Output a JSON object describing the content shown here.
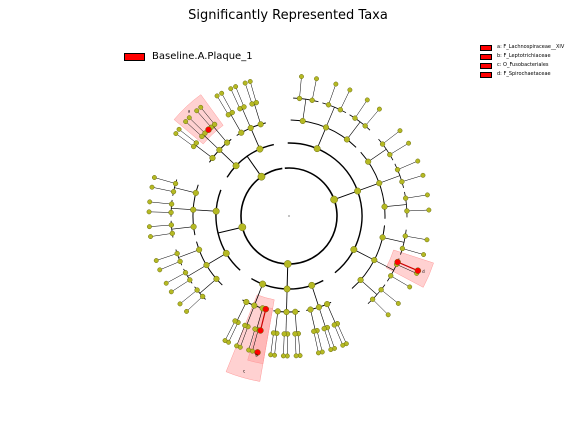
{
  "title": "Significantly Represented Taxa",
  "group_legend": {
    "label": "Baseline.A.Plaque_1",
    "color": "#ff0000"
  },
  "taxa_legend": [
    {
      "label": "a: F_Lachnospiraceae__XIV",
      "color": "#ff0000"
    },
    {
      "label": "b: F_Leptotrichiaceae",
      "color": "#ff0000"
    },
    {
      "label": "c: O_Fusobacteriales",
      "color": "#ff0000"
    },
    {
      "label": "d: F_Spirochaetaceae",
      "color": "#ff0000"
    }
  ],
  "clade_letters": [
    {
      "text": "a"
    },
    {
      "text": "d"
    },
    {
      "text": "c"
    },
    {
      "text": "b"
    }
  ],
  "colors": {
    "node": "#b5b923",
    "node_stroke": "#6a6c10",
    "highlight_node": "#ff0000",
    "shade": "#ff9999",
    "edge": "#000000"
  }
}
